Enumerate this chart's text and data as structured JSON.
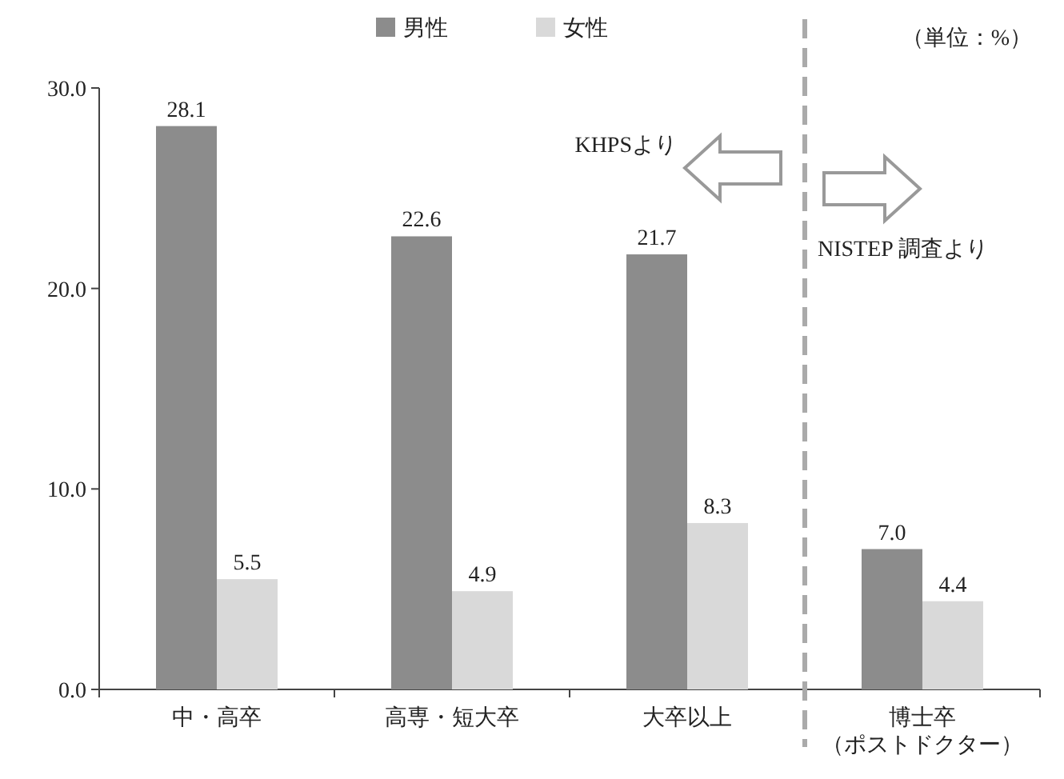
{
  "chart_data": {
    "type": "bar",
    "categories": [
      "中・高卒",
      "高専・短大卒",
      "大卒以上",
      "博士卒（ポストドクター）"
    ],
    "series": [
      {
        "name": "男性",
        "color": "#8c8c8c",
        "values": [
          28.1,
          22.6,
          21.7,
          7.0
        ],
        "value_labels": [
          "28.1",
          "22.6",
          "21.7",
          "7.0"
        ]
      },
      {
        "name": "女性",
        "color": "#d9d9d9",
        "values": [
          5.5,
          4.9,
          8.3,
          4.4
        ],
        "value_labels": [
          "5.5",
          "4.9",
          "8.3",
          "4.4"
        ]
      }
    ],
    "ylim": [
      0,
      30
    ],
    "yticks": [
      {
        "value": 0,
        "label": "0.0"
      },
      {
        "value": 10,
        "label": "10.0"
      },
      {
        "value": 20,
        "label": "20.0"
      },
      {
        "value": 30,
        "label": "30.0"
      }
    ],
    "grid": false,
    "legend": "top",
    "annotations": [
      "（単位：%）",
      "KHPSより",
      "NISTEP 調査より"
    ]
  }
}
